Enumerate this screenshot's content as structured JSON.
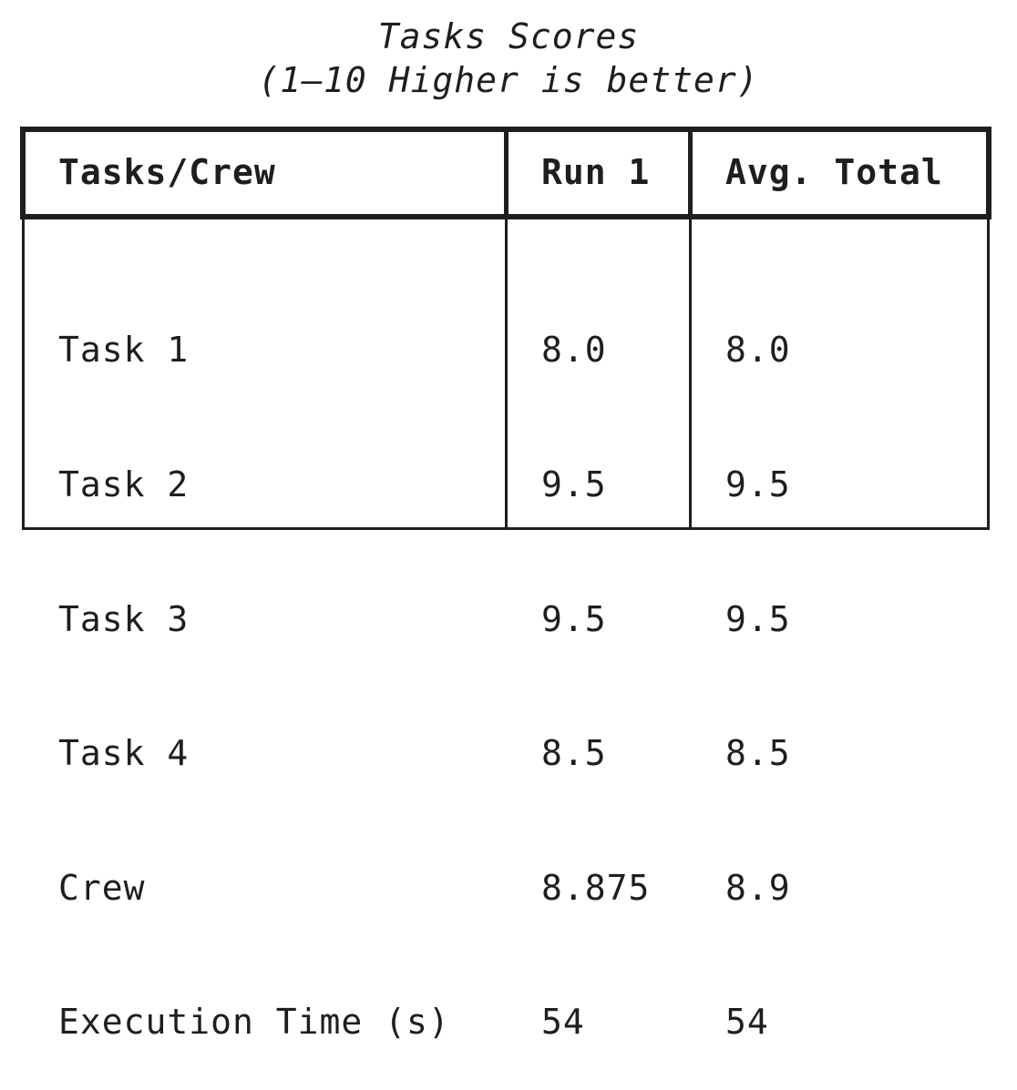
{
  "title": {
    "line1": "Tasks Scores",
    "line2": "(1–10 Higher is better)"
  },
  "table": {
    "headers": [
      "Tasks/Crew",
      "Run 1",
      "Avg. Total"
    ],
    "rows": [
      {
        "label": "Task 1",
        "run1": "8.0",
        "avg": "8.0"
      },
      {
        "label": "Task 2",
        "run1": "9.5",
        "avg": "9.5"
      },
      {
        "label": "Task 3",
        "run1": "9.5",
        "avg": "9.5"
      },
      {
        "label": "Task 4",
        "run1": "8.5",
        "avg": "8.5"
      },
      {
        "label": "Crew",
        "run1": "8.875",
        "avg": "8.9"
      },
      {
        "label": "Execution Time (s)",
        "run1": "54",
        "avg": "54"
      }
    ]
  }
}
